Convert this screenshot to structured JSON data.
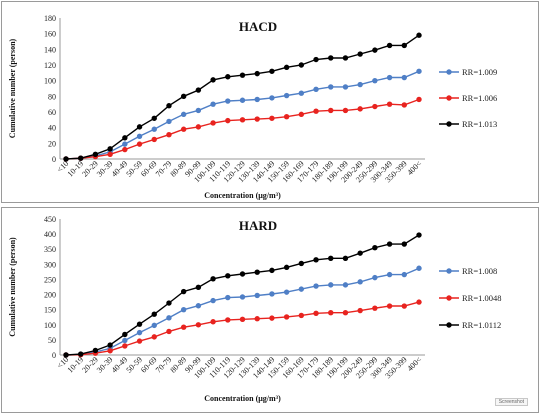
{
  "chart_data": [
    {
      "type": "line",
      "title": "HACD",
      "xlabel": "Concentration (μg/m³)",
      "ylabel": "Cumulative number (person)",
      "ylim": [
        0,
        180
      ],
      "yticks": [
        0,
        20,
        40,
        60,
        80,
        100,
        120,
        140,
        160,
        180
      ],
      "grid": false,
      "legend_position": "right",
      "categories": [
        "<10",
        "10-19",
        "20-29",
        "30-39",
        "40-49",
        "50-59",
        "60-69",
        "70-79",
        "80-89",
        "90-99",
        "100-109",
        "110-119",
        "120-129",
        "130-139",
        "140-149",
        "150-159",
        "160-169",
        "170-179",
        "180-189",
        "190-199",
        "200-249",
        "250-299",
        "300-349",
        "350-399",
        "400<"
      ],
      "series": [
        {
          "name": "RR=1.009",
          "color": "#4f7fc6",
          "values": [
            0,
            1,
            4,
            9,
            19,
            29,
            38,
            48,
            57,
            62,
            70,
            74,
            75,
            76,
            78,
            81,
            84,
            89,
            92,
            92,
            95,
            100,
            104,
            104,
            112
          ]
        },
        {
          "name": "RR=1.006",
          "color": "#e8231f",
          "values": [
            0,
            1,
            3,
            6,
            12,
            19,
            25,
            31,
            38,
            41,
            46,
            49,
            50,
            51,
            52,
            54,
            57,
            61,
            62,
            62,
            64,
            67,
            70,
            69,
            76
          ]
        },
        {
          "name": "RR=1.013",
          "color": "#000000",
          "values": [
            0,
            1,
            6,
            13,
            27,
            41,
            52,
            68,
            80,
            88,
            101,
            105,
            107,
            109,
            112,
            117,
            120,
            127,
            129,
            129,
            134,
            139,
            145,
            145,
            158
          ]
        }
      ]
    },
    {
      "type": "line",
      "title": "HARD",
      "xlabel": "Concentration (μg/m³)",
      "ylabel": "Cumulative number (person)",
      "ylim": [
        0,
        450
      ],
      "yticks": [
        0,
        50,
        100,
        150,
        200,
        250,
        300,
        350,
        400,
        450
      ],
      "grid": false,
      "legend_position": "right",
      "categories": [
        "<10",
        "10-19",
        "20-29",
        "30-39",
        "40-49",
        "50-59",
        "60-69",
        "70-79",
        "80-89",
        "90-99",
        "100-109",
        "110-119",
        "120-129",
        "130-139",
        "140-149",
        "150-159",
        "160-169",
        "170-179",
        "180-189",
        "190-199",
        "200-249",
        "250-299",
        "300-349",
        "350-399",
        "400<"
      ],
      "series": [
        {
          "name": "RR=1.008",
          "color": "#4f7fc6",
          "values": [
            0,
            2,
            10,
            22,
            48,
            74,
            98,
            123,
            150,
            163,
            180,
            190,
            192,
            197,
            202,
            208,
            218,
            228,
            232,
            232,
            242,
            256,
            266,
            266,
            287
          ]
        },
        {
          "name": "RR=1.0048",
          "color": "#e8231f",
          "values": [
            0,
            1,
            6,
            14,
            30,
            46,
            60,
            78,
            92,
            100,
            110,
            116,
            118,
            120,
            122,
            126,
            131,
            138,
            140,
            140,
            147,
            155,
            162,
            162,
            175
          ]
        },
        {
          "name": "RR=1.0112",
          "color": "#000000",
          "values": [
            0,
            3,
            15,
            33,
            68,
            102,
            135,
            172,
            210,
            224,
            252,
            262,
            268,
            274,
            280,
            290,
            303,
            315,
            320,
            320,
            337,
            355,
            367,
            367,
            397
          ]
        }
      ]
    }
  ],
  "watermark": "Screenshot"
}
